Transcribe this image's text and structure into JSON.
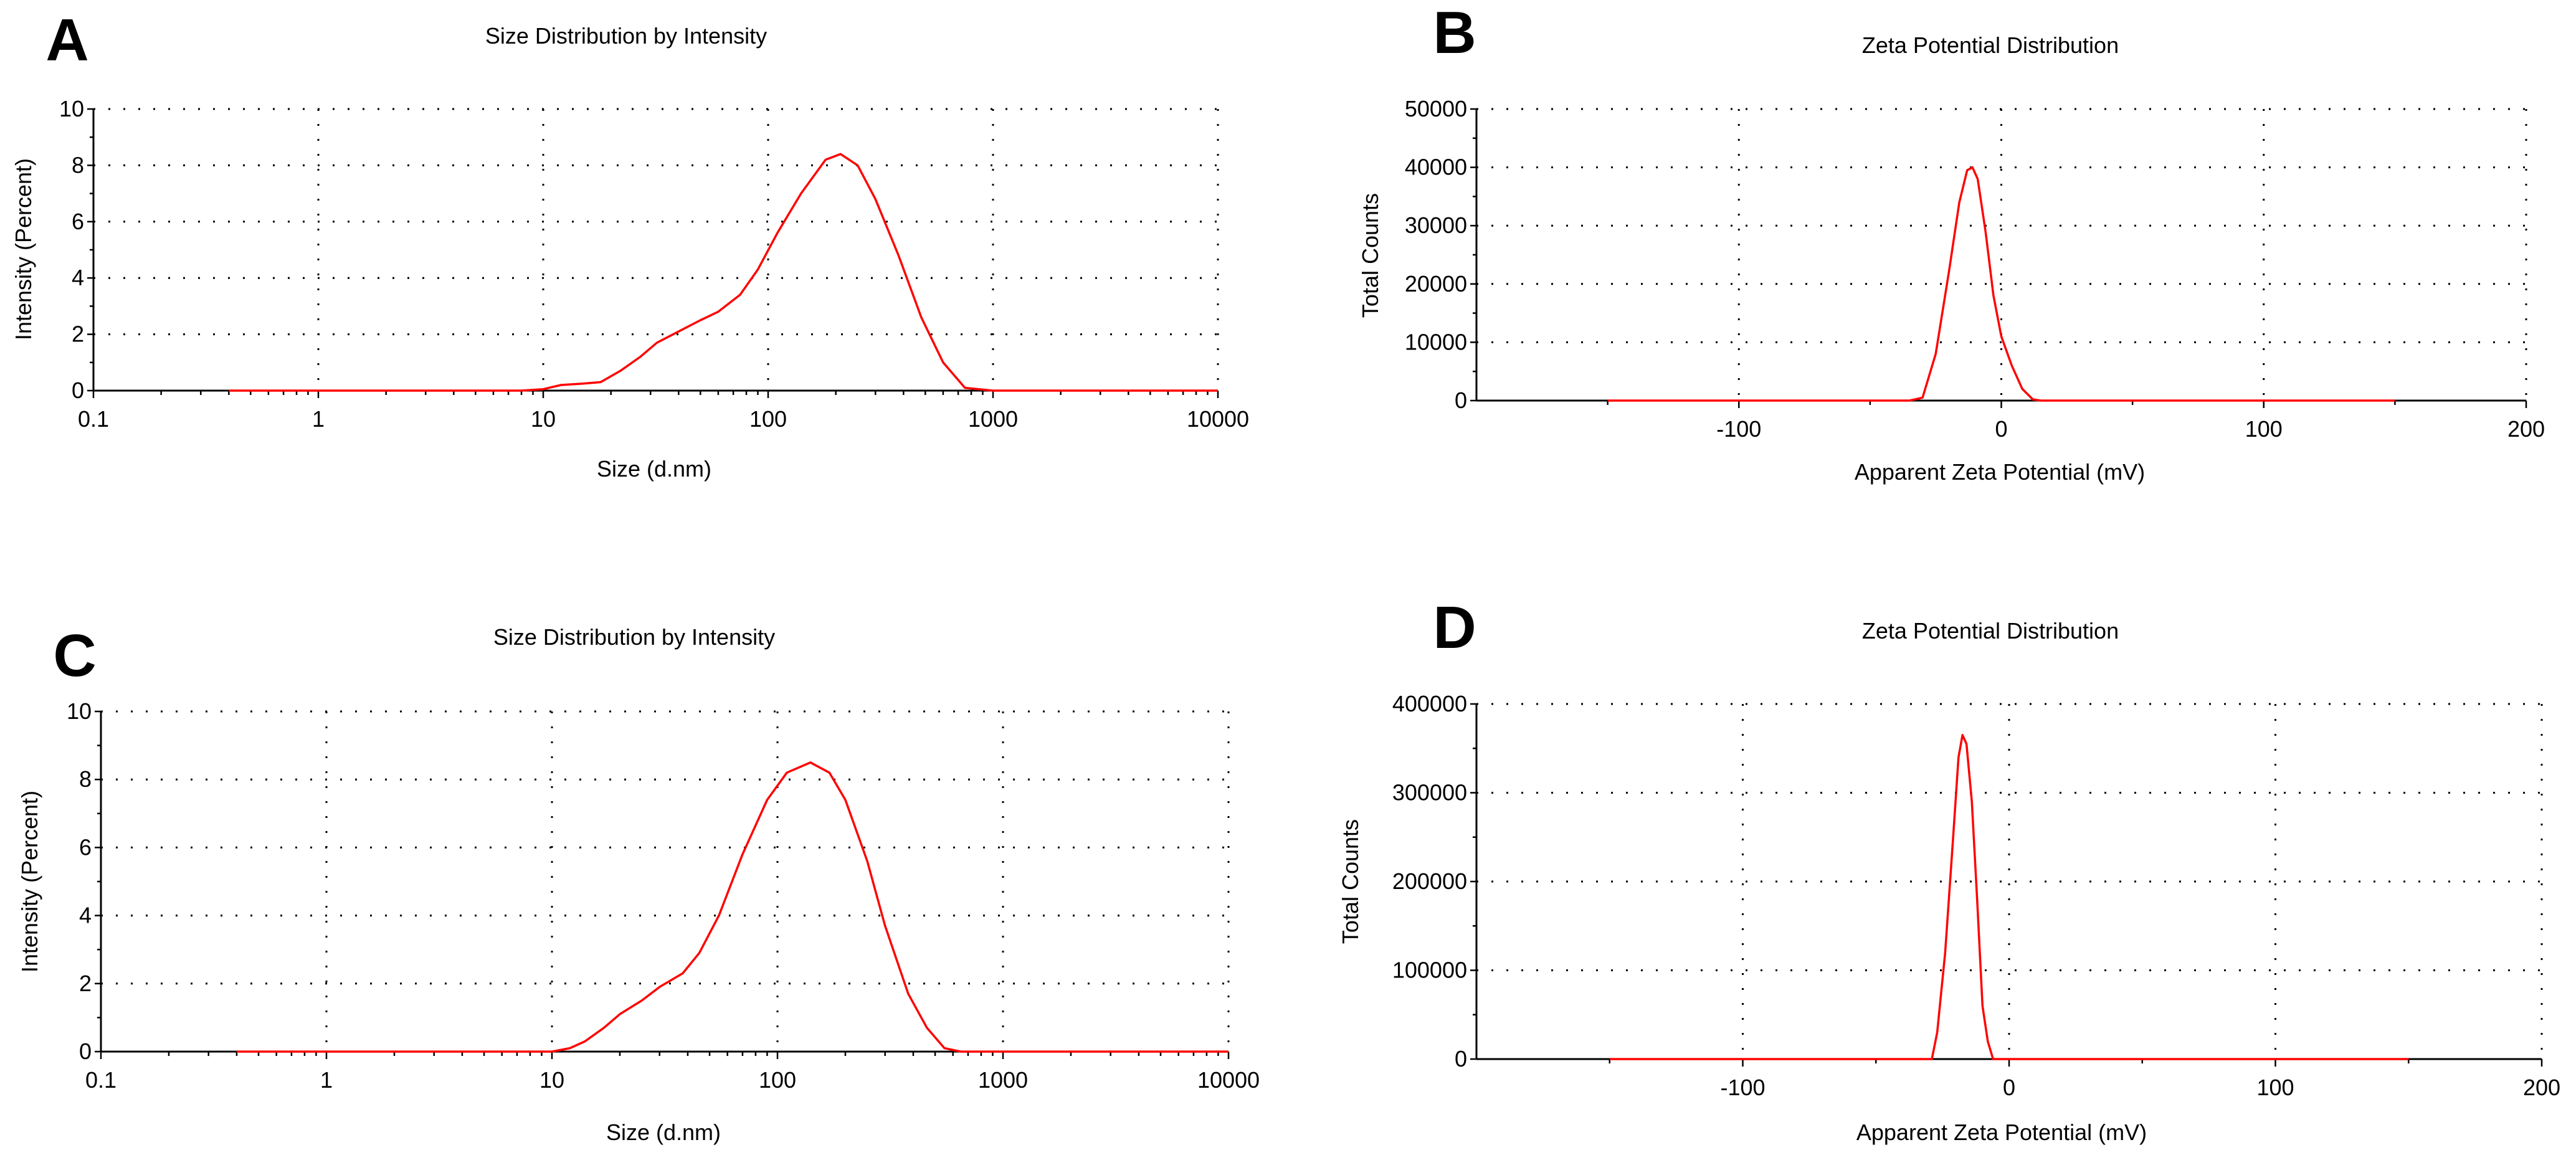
{
  "figure": {
    "colors": {
      "series": "#ff0000",
      "axis": "#000000",
      "background": "#ffffff"
    }
  },
  "chart_data": [
    {
      "panel": "A",
      "type": "line",
      "title": "Size Distribution by Intensity",
      "xlabel": "Size (d.nm)",
      "ylabel": "Intensity (Percent)",
      "xscale": "log",
      "xlim": [
        0.1,
        10000
      ],
      "ylim": [
        0,
        10
      ],
      "xticks": [
        0.1,
        1,
        10,
        100,
        1000,
        10000
      ],
      "xtick_labels": [
        "0.1",
        "1",
        "10",
        "100",
        "1000",
        "10000"
      ],
      "yticks": [
        0,
        2,
        4,
        6,
        8,
        10
      ],
      "ytick_labels": [
        "0",
        "2",
        "4",
        "6",
        "8",
        "10"
      ],
      "grid": true,
      "series": [
        {
          "name": "Intensity",
          "x": [
            0.4,
            1,
            5,
            8,
            10,
            12,
            15,
            18,
            22,
            27,
            32,
            40,
            50,
            60,
            75,
            90,
            110,
            140,
            180,
            210,
            250,
            300,
            380,
            480,
            600,
            750,
            1000,
            3000,
            10000
          ],
          "y": [
            0,
            0,
            0,
            0,
            0.05,
            0.2,
            0.25,
            0.3,
            0.7,
            1.2,
            1.7,
            2.1,
            2.5,
            2.8,
            3.4,
            4.3,
            5.6,
            7.0,
            8.2,
            8.4,
            8.0,
            6.8,
            4.8,
            2.6,
            1.0,
            0.1,
            0,
            0,
            0
          ]
        }
      ]
    },
    {
      "panel": "B",
      "type": "line",
      "title": "Zeta Potential Distribution",
      "xlabel": "Apparent Zeta Potential (mV)",
      "ylabel": "Total Counts",
      "xscale": "linear",
      "xlim": [
        -200,
        200
      ],
      "ylim": [
        0,
        50000
      ],
      "xticks": [
        -100,
        0,
        100,
        200
      ],
      "xtick_labels": [
        "-100",
        "0",
        "100",
        "200"
      ],
      "yticks": [
        0,
        10000,
        20000,
        30000,
        40000,
        50000
      ],
      "ytick_labels": [
        "0",
        "10000",
        "20000",
        "30000",
        "40000",
        "50000"
      ],
      "grid": true,
      "series": [
        {
          "name": "Total Counts",
          "x": [
            -150,
            -35,
            -30,
            -25,
            -20,
            -16,
            -13,
            -11,
            -9,
            -6,
            -3,
            0,
            4,
            8,
            12,
            15,
            150
          ],
          "y": [
            0,
            0,
            500,
            8000,
            22000,
            34000,
            39500,
            40000,
            38000,
            29000,
            18000,
            11000,
            6000,
            2000,
            200,
            0,
            0
          ]
        }
      ]
    },
    {
      "panel": "C",
      "type": "line",
      "title": "Size Distribution by Intensity",
      "xlabel": "Size (d.nm)",
      "ylabel": "Intensity (Percent)",
      "xscale": "log",
      "xlim": [
        0.1,
        10000
      ],
      "ylim": [
        0,
        10
      ],
      "xticks": [
        0.1,
        1,
        10,
        100,
        1000,
        10000
      ],
      "xtick_labels": [
        "0.1",
        "1",
        "10",
        "100",
        "1000",
        "10000"
      ],
      "yticks": [
        0,
        2,
        4,
        6,
        8,
        10
      ],
      "ytick_labels": [
        "0",
        "2",
        "4",
        "6",
        "8",
        "10"
      ],
      "grid": true,
      "series": [
        {
          "name": "Intensity",
          "x": [
            0.4,
            1,
            5,
            10,
            12,
            14,
            17,
            20,
            25,
            30,
            38,
            45,
            55,
            70,
            90,
            110,
            140,
            170,
            200,
            250,
            300,
            380,
            460,
            550,
            650,
            1000,
            3000,
            10000
          ],
          "y": [
            0,
            0,
            0,
            0,
            0.1,
            0.3,
            0.7,
            1.1,
            1.5,
            1.9,
            2.3,
            2.9,
            4.0,
            5.8,
            7.4,
            8.2,
            8.5,
            8.2,
            7.4,
            5.6,
            3.7,
            1.7,
            0.7,
            0.1,
            0,
            0,
            0,
            0
          ]
        }
      ]
    },
    {
      "panel": "D",
      "type": "line",
      "title": "Zeta Potential Distribution",
      "xlabel": "Apparent Zeta Potential (mV)",
      "ylabel": "Total Counts",
      "xscale": "linear",
      "xlim": [
        -200,
        200
      ],
      "ylim": [
        0,
        400000
      ],
      "xticks": [
        -100,
        0,
        100,
        200
      ],
      "xtick_labels": [
        "-100",
        "0",
        "100",
        "200"
      ],
      "yticks": [
        0,
        100000,
        200000,
        300000,
        400000
      ],
      "ytick_labels": [
        "0",
        "100000",
        "200000",
        "300000",
        "400000"
      ],
      "grid": true,
      "series": [
        {
          "name": "Total Counts",
          "x": [
            -150,
            -29,
            -27,
            -24,
            -21,
            -19,
            -17.5,
            -16,
            -14,
            -12,
            -10,
            -8,
            -6,
            -5,
            150
          ],
          "y": [
            0,
            0,
            30000,
            120000,
            250000,
            340000,
            365000,
            355000,
            290000,
            180000,
            60000,
            20000,
            0,
            0,
            0
          ]
        }
      ]
    }
  ]
}
